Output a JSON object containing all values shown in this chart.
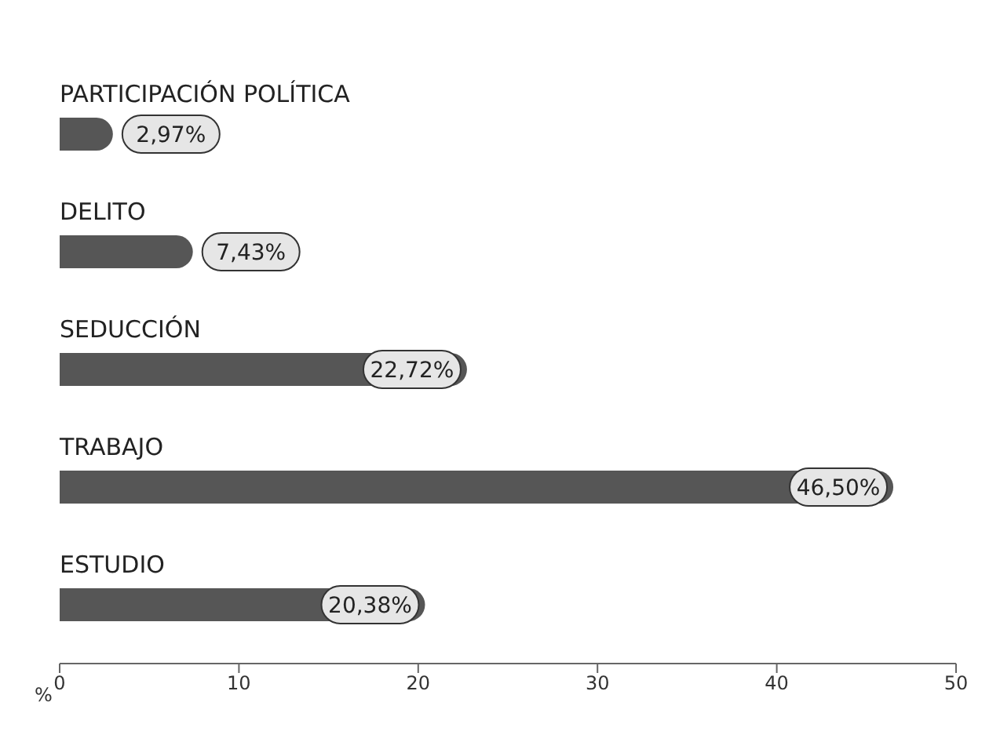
{
  "chart_data": {
    "type": "bar",
    "orientation": "horizontal",
    "categories": [
      "PARTICIPACIÓN POLÍTICA",
      "DELITO",
      "SEDUCCIÓN",
      "TRABAJO",
      "ESTUDIO"
    ],
    "values": [
      2.97,
      7.43,
      22.72,
      46.5,
      20.38
    ],
    "value_labels": [
      "2,97%",
      "7,43%",
      "22,72%",
      "46,50%",
      "20,38%"
    ],
    "color": "#565656",
    "xlabel": "%",
    "xlim": [
      0,
      50
    ],
    "xticks": [
      0,
      10,
      20,
      30,
      40,
      50
    ],
    "grid": false,
    "legend": false
  }
}
